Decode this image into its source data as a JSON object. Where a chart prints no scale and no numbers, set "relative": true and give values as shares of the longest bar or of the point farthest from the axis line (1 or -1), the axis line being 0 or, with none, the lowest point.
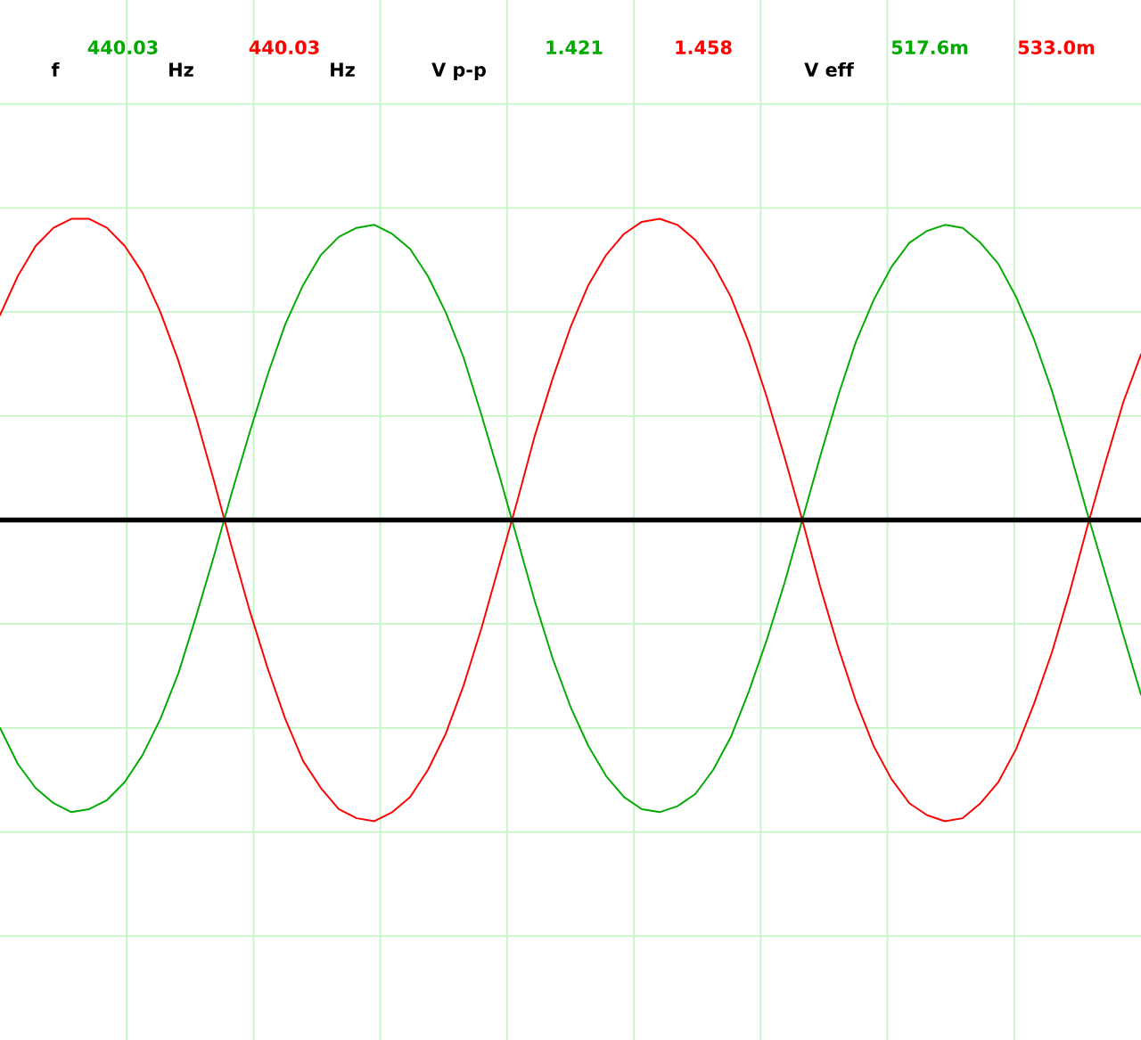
{
  "chart_data": {
    "type": "line",
    "relative": true,
    "grid": true,
    "line_style": "solid",
    "categories": [
      null,
      null,
      null,
      null,
      null,
      null,
      null,
      null,
      null,
      null,
      null,
      null,
      null,
      null,
      null,
      null,
      null,
      null,
      null,
      null,
      null,
      null,
      null,
      null,
      null,
      null,
      null,
      null,
      null,
      null,
      null,
      null,
      null,
      null,
      null,
      null,
      null,
      null,
      null,
      null,
      null,
      null,
      null,
      null,
      null,
      null,
      null,
      null,
      null,
      null,
      null,
      null,
      null,
      null,
      null,
      null,
      null,
      null,
      null,
      null,
      null,
      null,
      null,
      null,
      null
    ],
    "series": [
      {
        "color": "#00aa00",
        "values": [
          -0.69,
          -0.81,
          -0.89,
          -0.94,
          -0.97,
          -0.96,
          -0.93,
          -0.87,
          -0.78,
          -0.66,
          -0.51,
          -0.32,
          -0.12,
          0.09,
          0.29,
          0.48,
          0.65,
          0.78,
          0.88,
          0.94,
          0.97,
          0.98,
          0.95,
          0.9,
          0.81,
          0.69,
          0.54,
          0.35,
          0.15,
          -0.06,
          -0.27,
          -0.46,
          -0.62,
          -0.75,
          -0.85,
          -0.92,
          -0.96,
          -0.97,
          -0.95,
          -0.91,
          -0.83,
          -0.72,
          -0.57,
          -0.4,
          -0.21,
          0.0,
          0.21,
          0.41,
          0.59,
          0.73,
          0.84,
          0.92,
          0.96,
          0.98,
          0.97,
          0.92,
          0.85,
          0.74,
          0.6,
          0.43,
          0.23,
          0.02,
          -0.18,
          -0.38,
          -0.58
        ]
      },
      {
        "color": "#ff0000",
        "values": [
          0.68,
          0.81,
          0.91,
          0.97,
          1.0,
          1.0,
          0.97,
          0.91,
          0.82,
          0.69,
          0.53,
          0.34,
          0.13,
          -0.09,
          -0.3,
          -0.49,
          -0.66,
          -0.8,
          -0.89,
          -0.96,
          -0.99,
          -1.0,
          -0.97,
          -0.92,
          -0.83,
          -0.71,
          -0.55,
          -0.36,
          -0.15,
          0.06,
          0.28,
          0.47,
          0.64,
          0.78,
          0.88,
          0.95,
          0.99,
          1.0,
          0.98,
          0.93,
          0.85,
          0.74,
          0.59,
          0.41,
          0.21,
          0.0,
          -0.22,
          -0.42,
          -0.6,
          -0.75,
          -0.86,
          -0.94,
          -0.98,
          -1.0,
          -0.99,
          -0.94,
          -0.87,
          -0.76,
          -0.61,
          -0.44,
          -0.24,
          -0.02,
          0.19,
          0.39,
          0.55
        ]
      }
    ],
    "annotations": [
      "f",
      "440.03",
      "Hz",
      "440.03",
      "Hz",
      "V p-p",
      "1.421",
      "1.458",
      "V eff",
      "517.6m",
      "533.0m"
    ]
  }
}
